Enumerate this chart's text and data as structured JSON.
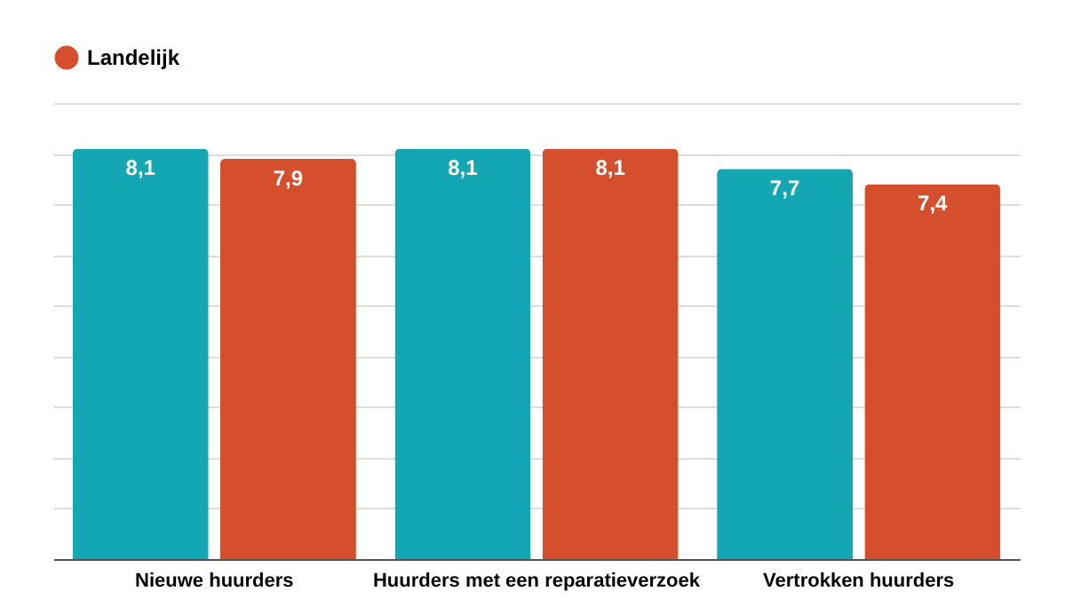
{
  "chart_data": {
    "type": "bar",
    "categories": [
      "Nieuwe huurders",
      "Huurders met een reparatieverzoek",
      "Vertrokken huurders"
    ],
    "series": [
      {
        "color": "#12a7b2",
        "values": [
          8.1,
          8.1,
          7.7
        ],
        "value_labels": [
          "8,1",
          "8,1",
          "7,7"
        ]
      },
      {
        "name": "Landelijk",
        "color": "#d54f2c",
        "values": [
          7.9,
          8.1,
          7.4
        ],
        "value_labels": [
          "7,9",
          "8,1",
          "7,4"
        ]
      }
    ],
    "grid": "y",
    "legend": "top",
    "tick_labels": "x"
  }
}
